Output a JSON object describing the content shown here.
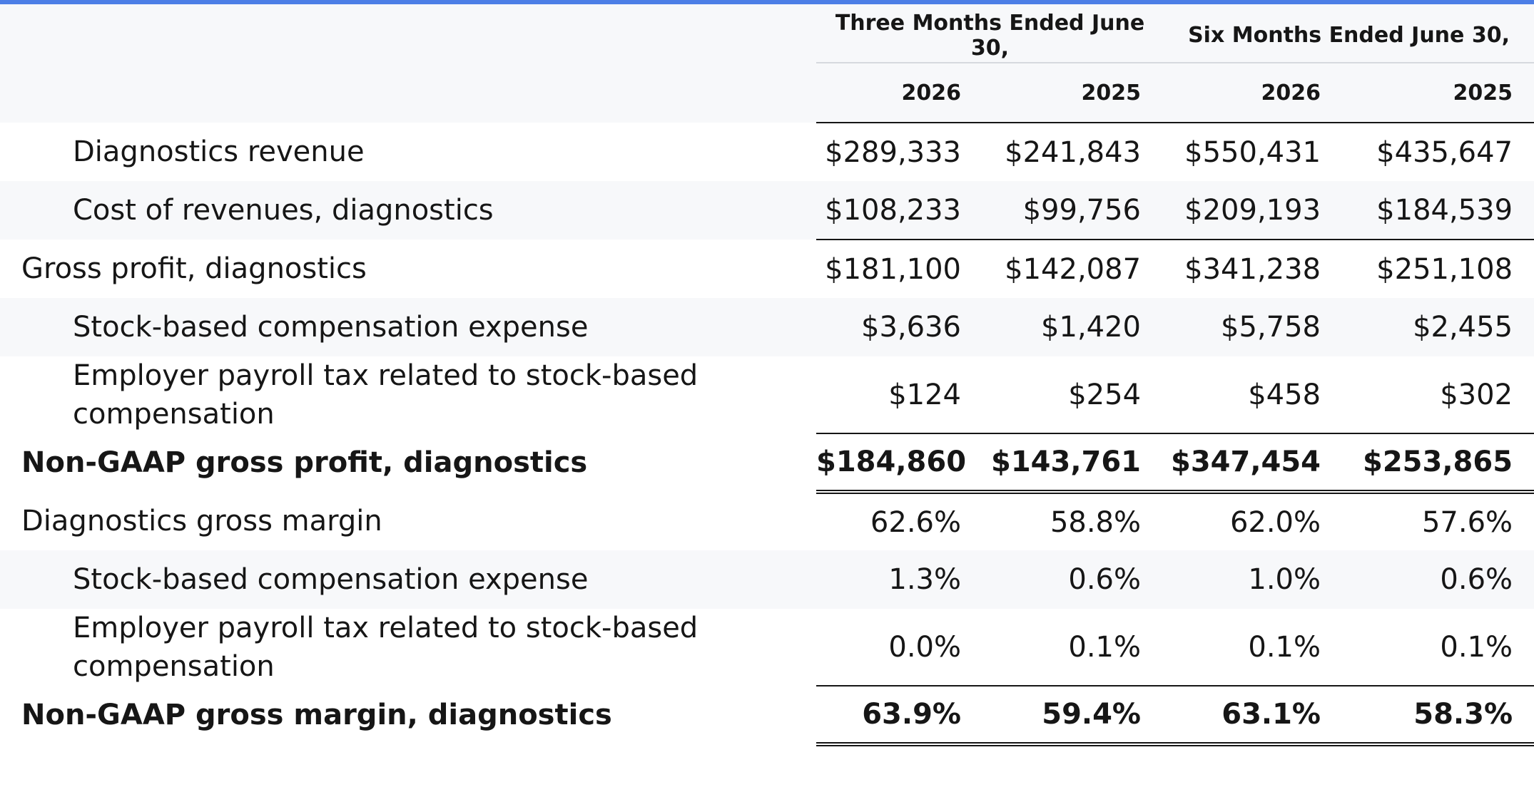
{
  "header": {
    "group_three_months": "Three Months Ended June 30,",
    "group_six_months": "Six Months Ended June 30,",
    "years": [
      "2026",
      "2025",
      "2026",
      "2025"
    ]
  },
  "rows": [
    {
      "label": "Diagnostics revenue",
      "values": [
        "$289,333",
        "$241,843",
        "$550,431",
        "$435,647"
      ]
    },
    {
      "label": "Cost of revenues, diagnostics",
      "values": [
        "$108,233",
        "$99,756",
        "$209,193",
        "$184,539"
      ]
    },
    {
      "label": "Gross profit, diagnostics",
      "values": [
        "$181,100",
        "$142,087",
        "$341,238",
        "$251,108"
      ]
    },
    {
      "label": "Stock-based compensation expense",
      "values": [
        "$3,636",
        "$1,420",
        "$5,758",
        "$2,455"
      ]
    },
    {
      "label": "Employer payroll tax related to stock-based compensation",
      "values": [
        "$124",
        "$254",
        "$458",
        "$302"
      ]
    },
    {
      "label": "Non-GAAP gross profit, diagnostics",
      "values": [
        "$184,860",
        "$143,761",
        "$347,454",
        "$253,865"
      ]
    },
    {
      "label": "Diagnostics gross margin",
      "values": [
        "62.6%",
        "58.8%",
        "62.0%",
        "57.6%"
      ]
    },
    {
      "label": "Stock-based compensation expense",
      "values": [
        "1.3%",
        "0.6%",
        "1.0%",
        "0.6%"
      ]
    },
    {
      "label": "Employer payroll tax related to stock-based compensation",
      "values": [
        "0.0%",
        "0.1%",
        "0.1%",
        "0.1%"
      ]
    },
    {
      "label": "Non-GAAP gross margin, diagnostics",
      "values": [
        "63.9%",
        "59.4%",
        "63.1%",
        "58.3%"
      ]
    }
  ],
  "colors": {
    "accent_bar": "#4c7ee6",
    "header_background": "#f7f8fa",
    "stripe_background": "#f7f8fa",
    "text": "#161616"
  }
}
